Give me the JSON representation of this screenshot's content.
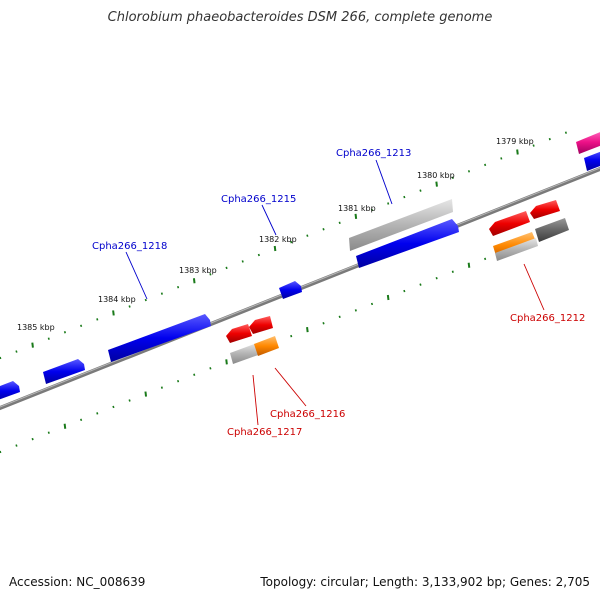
{
  "title": "Chlorobium phaeobacteroides DSM 266, complete genome",
  "footer": {
    "accession": "Accession: NC_008639",
    "summary": "Topology: circular; Length: 3,133,902 bp; Genes: 2,705"
  },
  "colors": {
    "backbone": "#7a7a7a",
    "tick": "#1a7a1a",
    "forward_label": "#0000cc",
    "reverse_label": "#cc0000",
    "gene_blue": "#0000ee",
    "gene_gray": "#aaaaaa",
    "gene_red": "#ee0000",
    "gene_orange": "#ff8800",
    "gene_darkgray": "#666666",
    "gene_pink": "#ee1188"
  },
  "kbp_labels": [
    {
      "text": "1379 kbp",
      "kbp": 1379
    },
    {
      "text": "1380 kbp",
      "kbp": 1380
    },
    {
      "text": "1381 kbp",
      "kbp": 1381
    },
    {
      "text": "1382 kbp",
      "kbp": 1382
    },
    {
      "text": "1383 kbp",
      "kbp": 1383
    },
    {
      "text": "1384 kbp",
      "kbp": 1384
    },
    {
      "text": "1385 kbp",
      "kbp": 1385
    }
  ],
  "gene_labels": [
    {
      "text": "Cpha266_1213",
      "strand": "forward"
    },
    {
      "text": "Cpha266_1215",
      "strand": "forward"
    },
    {
      "text": "Cpha266_1218",
      "strand": "forward"
    },
    {
      "text": "Cpha266_1212",
      "strand": "reverse"
    },
    {
      "text": "Cpha266_1216",
      "strand": "reverse"
    },
    {
      "text": "Cpha266_1217",
      "strand": "reverse"
    }
  ]
}
